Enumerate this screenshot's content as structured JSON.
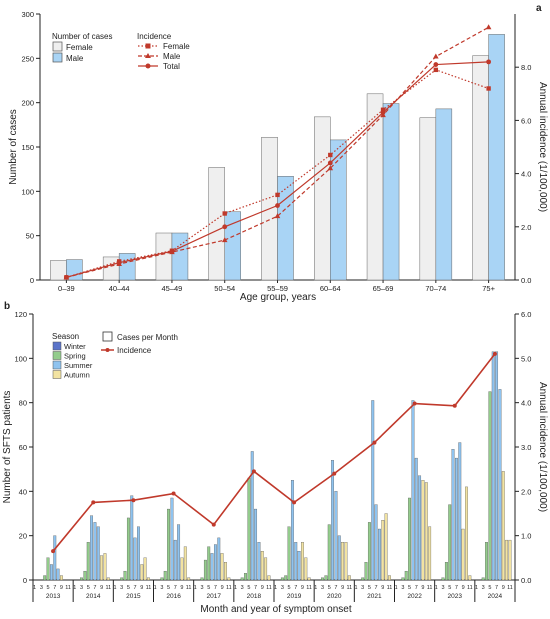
{
  "chart_data": [
    {
      "panel_label": "a",
      "type": "bar",
      "categories": [
        "0–39",
        "40–44",
        "45–49",
        "50–54",
        "55–59",
        "60–64",
        "65–69",
        "70–74",
        "75+"
      ],
      "xlabel": "Age group, years",
      "ylabel": "Number of cases",
      "y2label": "Annual incidence (1/100,000)",
      "ylim": [
        0,
        300
      ],
      "yticks": [
        "0",
        "50",
        "100",
        "150",
        "200",
        "250",
        "300"
      ],
      "y2lim": [
        0,
        10
      ],
      "y2ticks": [
        "0.0",
        "2.0",
        "4.0",
        "6.0",
        "8.0"
      ],
      "legend_bars_title": "Number of cases",
      "legend_lines_title": "Incidence",
      "bar_series": [
        {
          "name": "Female",
          "color": "#efefef",
          "values": [
            22,
            26,
            53,
            127,
            161,
            184,
            210,
            183,
            253
          ]
        },
        {
          "name": "Male",
          "color": "#a9d4f5",
          "values": [
            23,
            30,
            53,
            77,
            117,
            158,
            199,
            193,
            277
          ]
        }
      ],
      "line_series": [
        {
          "name": "Female",
          "style": "dotted",
          "marker": "square",
          "color": "#c0392b",
          "values": [
            0.1,
            0.7,
            1.1,
            2.5,
            3.2,
            4.7,
            6.4,
            7.9,
            7.2
          ]
        },
        {
          "name": "Male",
          "style": "dashed",
          "marker": "triangle",
          "color": "#c0392b",
          "values": [
            0.1,
            0.6,
            1.05,
            1.5,
            2.4,
            4.2,
            6.2,
            8.4,
            9.5
          ]
        },
        {
          "name": "Total",
          "style": "solid",
          "marker": "circle",
          "color": "#c0392b",
          "values": [
            0.1,
            0.65,
            1.08,
            2.0,
            2.8,
            4.4,
            6.3,
            8.1,
            8.2
          ]
        }
      ],
      "legend_placement": "top-left",
      "grid": false
    },
    {
      "panel_label": "b",
      "type": "bar",
      "years": [
        "2013",
        "2014",
        "2015",
        "2016",
        "2017",
        "2018",
        "2019",
        "2020",
        "2021",
        "2022",
        "2023",
        "2024"
      ],
      "month_labels": [
        "1",
        "3",
        "5",
        "7",
        "9",
        "11"
      ],
      "xlabel": "Month and year of symptom onset",
      "ylabel": "Number of SFTS patients",
      "y2label": "Annual incidence (1/100,000)",
      "ylim": [
        0,
        120
      ],
      "yticks": [
        "0",
        "20",
        "40",
        "60",
        "80",
        "100",
        "120"
      ],
      "y2lim": [
        0,
        6
      ],
      "y2ticks": [
        "0.0",
        "1.0",
        "2.0",
        "3.0",
        "4.0",
        "5.0",
        "6.0"
      ],
      "legend_season_title": "Season",
      "legend_cases_label": "Cases per Month",
      "legend_incidence_label": "Incidence",
      "seasons": [
        {
          "name": "Winter",
          "color": "#5b74c9"
        },
        {
          "name": "Spring",
          "color": "#93cc8c"
        },
        {
          "name": "Summer",
          "color": "#8fc3ef"
        },
        {
          "name": "Autumn",
          "color": "#f2e3a2"
        }
      ],
      "monthly_cases": [
        [
          0,
          0,
          0,
          2,
          10,
          7,
          20,
          5,
          2,
          0,
          0,
          0
        ],
        [
          0,
          0,
          1,
          4,
          17,
          29,
          26,
          24,
          11,
          12,
          1,
          0
        ],
        [
          0,
          0,
          1,
          4,
          28,
          38,
          19,
          24,
          7,
          10,
          1,
          0
        ],
        [
          0,
          0,
          1,
          4,
          32,
          37,
          18,
          25,
          10,
          15,
          1,
          0
        ],
        [
          0,
          0,
          1,
          9,
          15,
          12,
          16,
          19,
          12,
          8,
          1,
          0
        ],
        [
          0,
          0,
          1,
          3,
          46,
          58,
          32,
          17,
          13,
          10,
          2,
          0
        ],
        [
          0,
          0,
          1,
          2,
          24,
          45,
          17,
          13,
          17,
          10,
          1,
          0
        ],
        [
          0,
          0,
          1,
          2,
          25,
          54,
          40,
          20,
          17,
          17,
          2,
          0
        ],
        [
          0,
          0,
          1,
          8,
          26,
          81,
          34,
          23,
          27,
          30,
          2,
          0
        ],
        [
          0,
          0,
          1,
          4,
          37,
          81,
          55,
          47,
          45,
          44,
          24,
          0
        ],
        [
          0,
          0,
          1,
          8,
          34,
          59,
          55,
          62,
          23,
          42,
          2,
          0
        ],
        [
          0,
          0,
          1,
          17,
          85,
          103,
          103,
          86,
          49,
          18,
          18,
          0
        ]
      ],
      "incidence": [
        0.65,
        1.75,
        1.8,
        1.95,
        1.25,
        2.45,
        1.75,
        2.4,
        3.1,
        3.98,
        3.93,
        5.1
      ],
      "legend_placement": "top-left",
      "grid": false
    }
  ]
}
